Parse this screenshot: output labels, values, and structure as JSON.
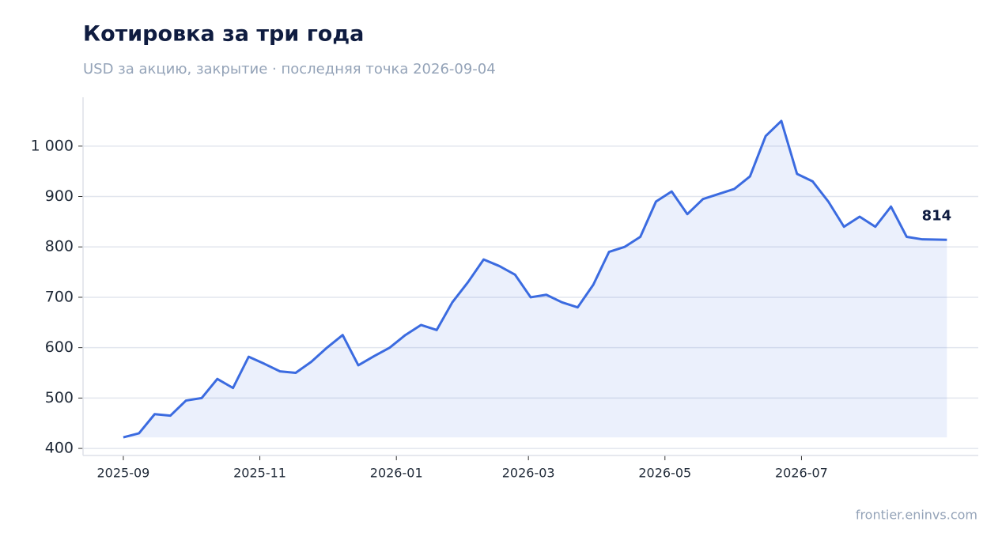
{
  "chart_data": {
    "type": "line",
    "title": "Котировка за три года",
    "subtitle": "USD за акцию, закрытие · последняя точка 2026-09-04",
    "source": "frontier.eninvs.com",
    "x": [
      "2025-09-01",
      "2025-09-08",
      "2025-09-15",
      "2025-09-22",
      "2025-09-29",
      "2025-10-06",
      "2025-10-13",
      "2025-10-20",
      "2025-10-27",
      "2025-11-03",
      "2025-11-10",
      "2025-11-17",
      "2025-11-24",
      "2025-12-01",
      "2025-12-08",
      "2025-12-15",
      "2025-12-22",
      "2025-12-29",
      "2026-01-05",
      "2026-01-12",
      "2026-01-19",
      "2026-01-26",
      "2026-02-02",
      "2026-02-09",
      "2026-02-16",
      "2026-02-23",
      "2026-03-02",
      "2026-03-09",
      "2026-03-16",
      "2026-03-23",
      "2026-03-30",
      "2026-04-06",
      "2026-04-13",
      "2026-04-20",
      "2026-04-27",
      "2026-05-04",
      "2026-05-11",
      "2026-05-18",
      "2026-05-25",
      "2026-06-01",
      "2026-06-08",
      "2026-06-15",
      "2026-06-22",
      "2026-06-29",
      "2026-07-06",
      "2026-07-13",
      "2026-07-20",
      "2026-07-27",
      "2026-08-03",
      "2026-08-10",
      "2026-08-17",
      "2026-08-24",
      "2026-09-04"
    ],
    "series": [
      {
        "color": "#3b6be0",
        "values": [
          422,
          430,
          468,
          465,
          495,
          500,
          538,
          520,
          582,
          568,
          553,
          550,
          572,
          600,
          625,
          565,
          583,
          600,
          625,
          645,
          635,
          690,
          730,
          775,
          762,
          745,
          700,
          705,
          690,
          680,
          725,
          790,
          800,
          820,
          890,
          910,
          865,
          895,
          905,
          915,
          940,
          1020,
          1050,
          945,
          930,
          890,
          840,
          860,
          840,
          880,
          820,
          815,
          814
        ]
      }
    ],
    "xlim": [
      "2025-08-14",
      "2026-09-18"
    ],
    "xticks": [
      {
        "value": "2025-09-01",
        "label": "2025-09"
      },
      {
        "value": "2025-11-01",
        "label": "2025-11"
      },
      {
        "value": "2026-01-01",
        "label": "2026-01"
      },
      {
        "value": "2026-03-01",
        "label": "2026-03"
      },
      {
        "value": "2026-05-01",
        "label": "2026-05"
      },
      {
        "value": "2026-07-01",
        "label": "2026-07"
      }
    ],
    "ylim": [
      386,
      1097
    ],
    "yticks": [
      400,
      500,
      600,
      700,
      800,
      900,
      {
        "value": 1000,
        "label": "1 000"
      }
    ],
    "grid": true
  }
}
